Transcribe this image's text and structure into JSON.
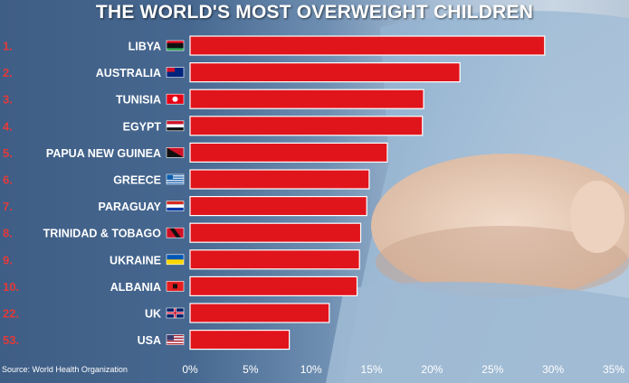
{
  "title": "THE WORLD'S MOST OVERWEIGHT CHILDREN",
  "source": "Source: World Health Organization",
  "colors": {
    "bar": "#e0151b",
    "rank": "#e23a3a",
    "label": "#ffffff",
    "axis": "#ffffff"
  },
  "chart_data": {
    "type": "bar",
    "orientation": "horizontal",
    "title": "THE WORLD'S MOST OVERWEIGHT CHILDREN",
    "xlim": [
      0,
      35
    ],
    "ticks": [
      "0%",
      "5%",
      "10%",
      "15%",
      "20%",
      "25%",
      "30%",
      "35%"
    ],
    "tick_values": [
      0,
      5,
      10,
      15,
      20,
      25,
      30,
      35
    ],
    "ranks": [
      "1.",
      "2.",
      "3.",
      "4.",
      "5.",
      "6.",
      "7.",
      "8.",
      "9.",
      "10.",
      "22.",
      "53."
    ],
    "categories": [
      "LIBYA",
      "AUSTRALIA",
      "TUNISIA",
      "EGYPT",
      "PAPUA NEW GUINEA",
      "GREECE",
      "PARAGUAY",
      "TRINIDAD & TOBAGO",
      "UKRAINE",
      "ALBANIA",
      "UK",
      "USA"
    ],
    "flags": [
      "libya-flag-icon",
      "australia-flag-icon",
      "tunisia-flag-icon",
      "egypt-flag-icon",
      "papua-new-guinea-flag-icon",
      "greece-flag-icon",
      "paraguay-flag-icon",
      "trinidad-tobago-flag-icon",
      "ukraine-flag-icon",
      "albania-flag-icon",
      "uk-flag-icon",
      "usa-flag-icon"
    ],
    "values": [
      29.3,
      22.3,
      19.3,
      19.2,
      16.3,
      14.8,
      14.6,
      14.1,
      14.0,
      13.8,
      11.5,
      8.2
    ],
    "grid": false
  }
}
